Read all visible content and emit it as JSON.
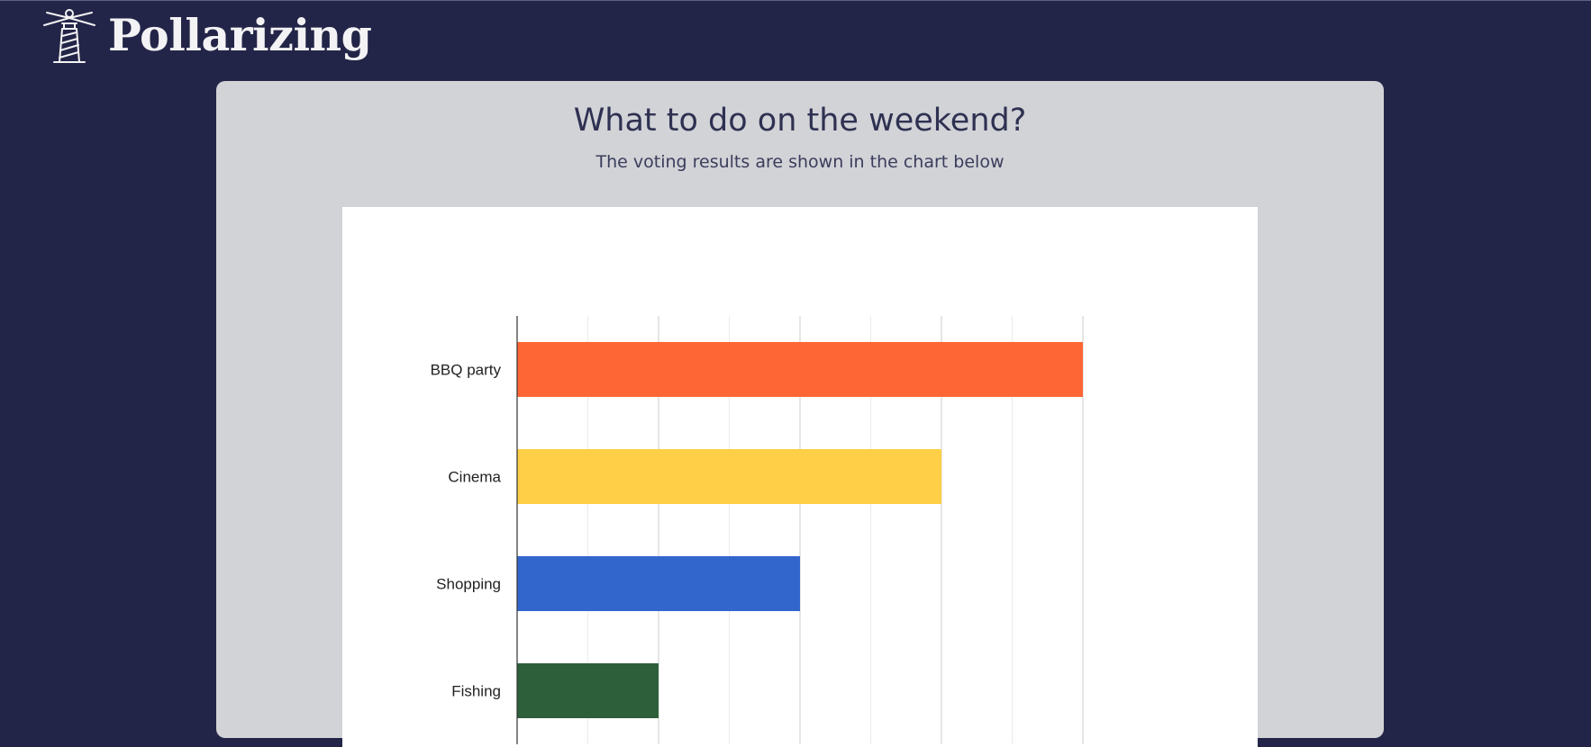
{
  "brand": {
    "name": "Pollarizing",
    "logo_icon": "lighthouse-icon"
  },
  "poll": {
    "title": "What to do on the weekend?",
    "subtitle": "The voting results are shown in the chart below"
  },
  "colors": {
    "page_background": "#232548",
    "card_background": "#d2d3d7",
    "title_text": "#2f3152"
  },
  "chart_data": {
    "type": "bar",
    "orientation": "horizontal",
    "categories": [
      "BBQ party",
      "Cinema",
      "Shopping",
      "Fishing"
    ],
    "values": [
      4,
      3,
      2,
      1
    ],
    "colors": [
      "#ff6636",
      "#ffcf47",
      "#3366cc",
      "#2d5f3a"
    ],
    "title": "",
    "xlabel": "",
    "ylabel": "",
    "xlim": [
      0,
      4
    ],
    "ticks": [
      "0",
      "1",
      "2",
      "3",
      "4"
    ],
    "grid": true,
    "legend": "none"
  }
}
